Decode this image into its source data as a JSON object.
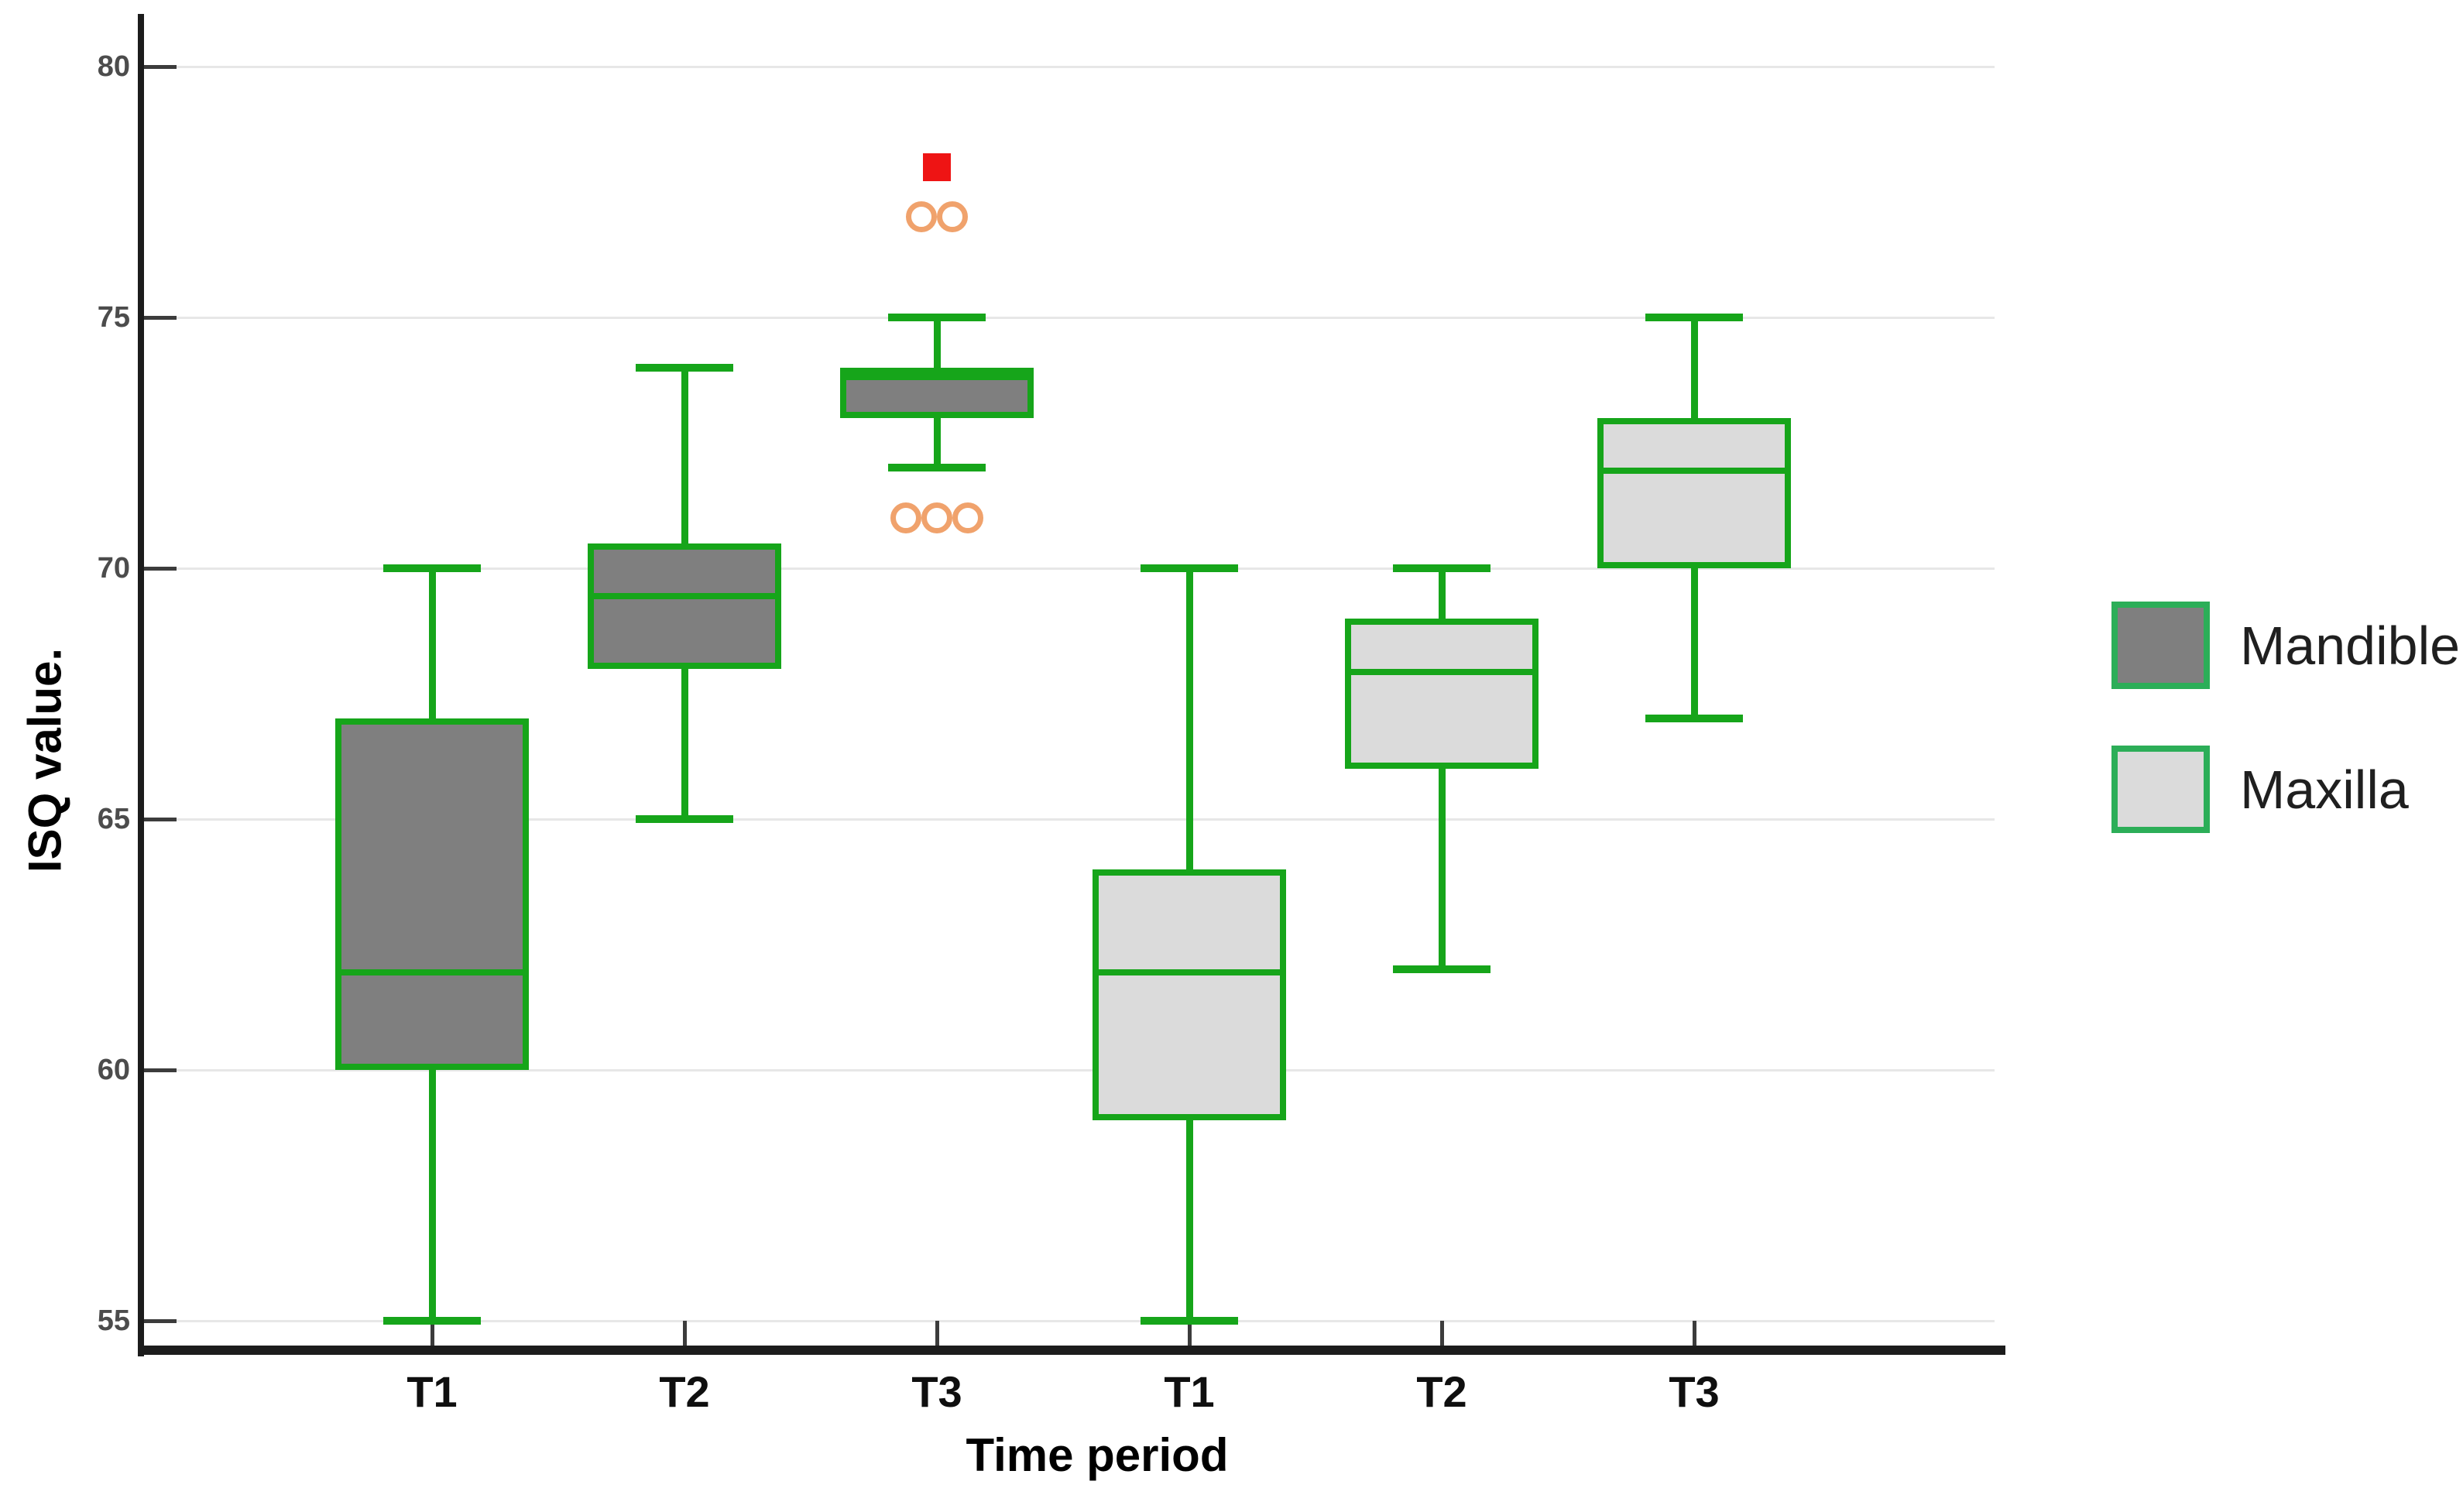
{
  "chart_data": {
    "type": "boxplot",
    "title": "",
    "xlabel": "Time period",
    "ylabel": "ISQ value.",
    "y_ticks": [
      55,
      60,
      65,
      70,
      75,
      80
    ],
    "ylim": [
      54.3,
      81.0
    ],
    "grid": "horizontal-light",
    "legend_position": "right",
    "categories": [
      "T1",
      "T2",
      "T3",
      "T1",
      "T2",
      "T3"
    ],
    "legend": [
      {
        "label": "Mandible",
        "fill": "#7f7f7f"
      },
      {
        "label": "Maxilla",
        "fill": "#dbdbdb"
      }
    ],
    "boxes": [
      {
        "series": "Mandible",
        "category": "T1",
        "whisker_low": 55,
        "q1": 60,
        "median": 62,
        "q3": 67,
        "whisker_high": 70,
        "outliers": [],
        "extreme_outliers": []
      },
      {
        "series": "Mandible",
        "category": "T2",
        "whisker_low": 65,
        "q1": 68,
        "median": 69.5,
        "q3": 70.5,
        "whisker_high": 74,
        "outliers": [],
        "extreme_outliers": []
      },
      {
        "series": "Mandible",
        "category": "T3",
        "whisker_low": 72,
        "q1": 73,
        "median": 74,
        "q3": 74,
        "whisker_high": 75,
        "outliers": [
          77,
          77,
          71,
          71,
          71
        ],
        "extreme_outliers": [
          78
        ]
      },
      {
        "series": "Maxilla",
        "category": "T1",
        "whisker_low": 55,
        "q1": 59,
        "median": 62,
        "q3": 64,
        "whisker_high": 70,
        "outliers": [],
        "extreme_outliers": []
      },
      {
        "series": "Maxilla",
        "category": "T2",
        "whisker_low": 62,
        "q1": 66,
        "median": 68,
        "q3": 69,
        "whisker_high": 70,
        "outliers": [],
        "extreme_outliers": []
      },
      {
        "series": "Maxilla",
        "category": "T3",
        "whisker_low": 67,
        "q1": 70,
        "median": 72,
        "q3": 73,
        "whisker_high": 75,
        "outliers": [],
        "extreme_outliers": []
      }
    ]
  },
  "colors": {
    "box_border_green": "#16a51a",
    "legend_border_green": "#2cae58",
    "mandible_fill": "#7f7f7f",
    "maxilla_fill": "#dbdbdb",
    "outlier_orange": "#f0a26c",
    "extreme_red": "#ee1414",
    "gridline": "#e7e7e7",
    "axis": "#1c1c1c",
    "tick_mark": "#3c3c3c",
    "tick_label": "#4c4c4c",
    "category_label": "#0f0f0f",
    "axis_title": "#000000"
  }
}
